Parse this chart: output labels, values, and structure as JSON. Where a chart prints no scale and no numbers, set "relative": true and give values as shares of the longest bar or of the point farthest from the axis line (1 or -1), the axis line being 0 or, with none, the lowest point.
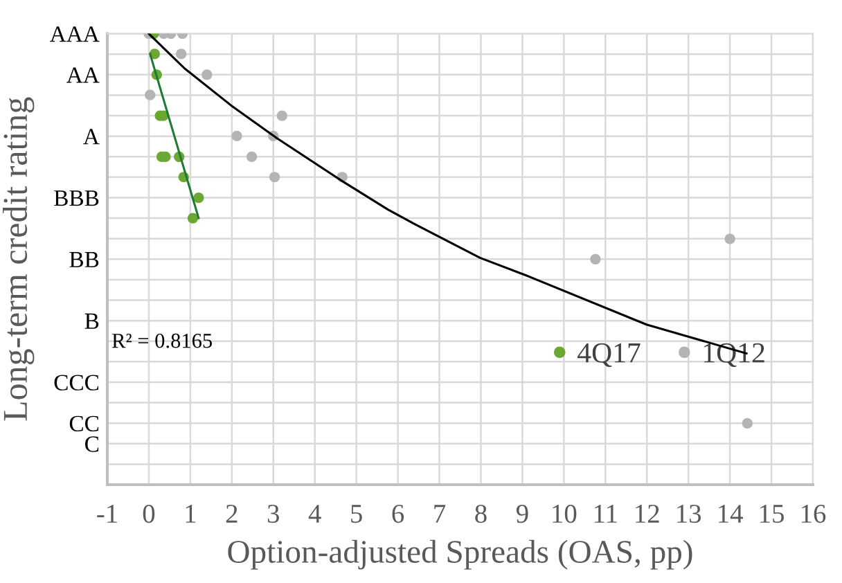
{
  "chart_data": {
    "type": "scatter",
    "xlabel": "Option-adjusted Spreads (OAS, pp)",
    "ylabel": "Long-term credit rating",
    "xlim": [
      -1,
      16
    ],
    "xticks": [
      -1,
      0,
      1,
      2,
      3,
      4,
      5,
      6,
      7,
      8,
      9,
      10,
      11,
      12,
      13,
      14,
      15,
      16
    ],
    "y_categories": [
      "AAA",
      null,
      "AA",
      null,
      null,
      "A",
      null,
      null,
      "BBB",
      null,
      null,
      "BB",
      null,
      null,
      "B",
      null,
      null,
      "CCC",
      null,
      "CC",
      "C",
      null,
      null
    ],
    "relative": true,
    "grid": true,
    "legend": "bottom right",
    "marker": "circle",
    "annotations": [
      "R² = 0.8165"
    ],
    "series": [
      {
        "name": "1Q12",
        "color": "#b4b4b4",
        "x": [
          0.0,
          0.36,
          0.53,
          0.81,
          0.78,
          1.4,
          0.03,
          3.21,
          2.12,
          3.0,
          2.48,
          3.03,
          4.66,
          10.76,
          14.0,
          14.42
        ],
        "values": [
          1,
          1,
          1,
          1,
          0.955,
          0.909,
          0.864,
          0.818,
          0.773,
          0.773,
          0.727,
          0.682,
          0.682,
          0.5,
          0.545,
          0.136
        ]
      },
      {
        "name": "4Q17",
        "color": "#6aa832",
        "x": [
          0.12,
          0.14,
          0.19,
          0.27,
          0.35,
          0.31,
          0.4,
          0.73,
          0.84,
          1.2,
          1.06
        ],
        "values": [
          1,
          0.955,
          0.909,
          0.818,
          0.818,
          0.727,
          0.727,
          0.727,
          0.682,
          0.636,
          0.591
        ]
      },
      {
        "type": "line",
        "marker": "none",
        "color": "#1e7a35",
        "x": [
          0.03,
          1.2
        ],
        "values": [
          0.955,
          0.591
        ]
      },
      {
        "type": "line",
        "marker": "none",
        "color": "#000000",
        "x": [
          0,
          0.86,
          1.98,
          3.09,
          4.66,
          5.76,
          6.42,
          7.98,
          9.09,
          11.99,
          14.4
        ],
        "values": [
          1,
          0.923,
          0.841,
          0.768,
          0.673,
          0.61,
          0.577,
          0.503,
          0.464,
          0.355,
          0.291
        ]
      }
    ]
  }
}
